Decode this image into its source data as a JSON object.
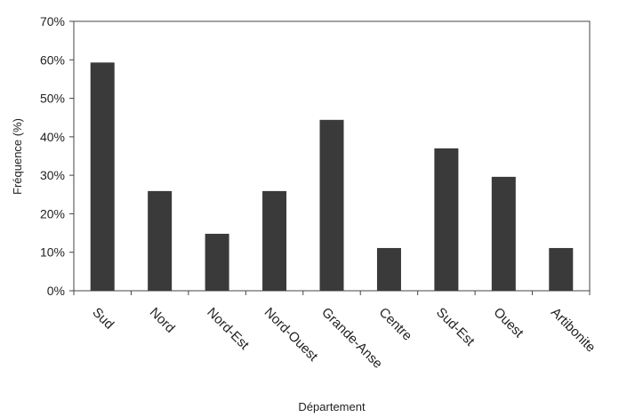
{
  "chart_data": {
    "type": "bar",
    "title": "",
    "xlabel": "Département",
    "ylabel": "Fréquence (%)",
    "categories": [
      "Sud",
      "Nord",
      "Nord-Est",
      "Nord-Ouest",
      "Grande-Anse",
      "Centre",
      "Sud-Est",
      "Ouest",
      "Artibonite"
    ],
    "values": [
      59.3,
      25.9,
      14.8,
      25.9,
      44.4,
      11.1,
      37.0,
      29.6,
      11.1
    ],
    "ylim": [
      0,
      70
    ],
    "yticks": [
      0,
      10,
      20,
      30,
      40,
      50,
      60,
      70
    ],
    "ytick_labels": [
      "0%",
      "10%",
      "20%",
      "30%",
      "40%",
      "50%",
      "60%",
      "70%"
    ],
    "grid": false,
    "legend": "none",
    "bar_color": "#3a3a3a"
  }
}
